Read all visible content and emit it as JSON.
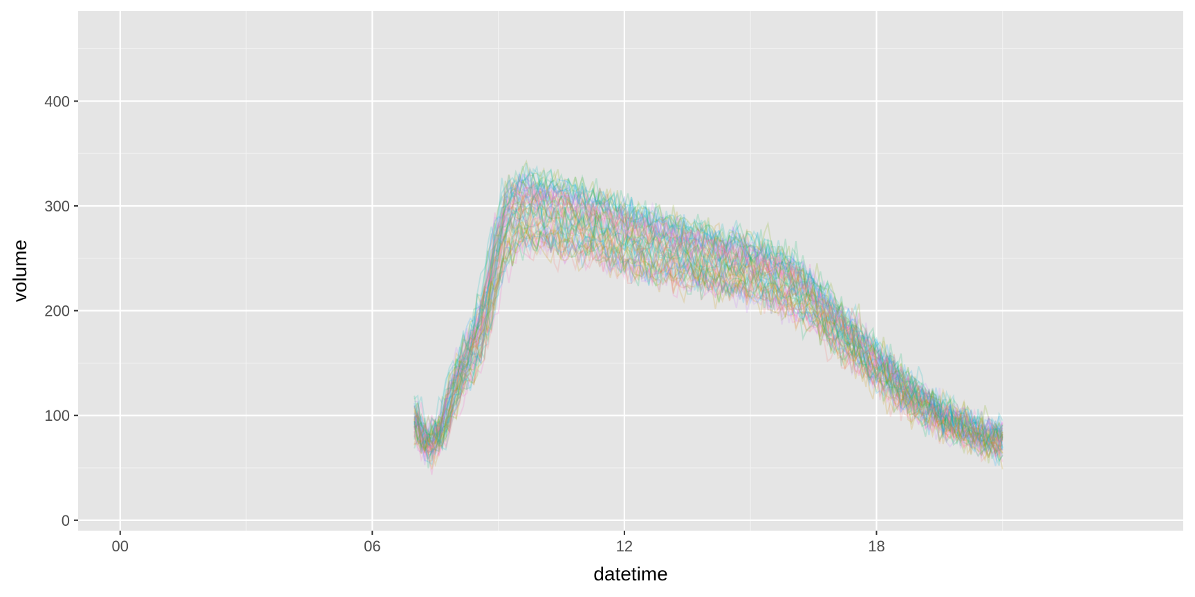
{
  "chart_data": {
    "type": "line",
    "title": "",
    "xlabel": "datetime",
    "ylabel": "volume",
    "x_unit": "hour of day",
    "xlim": [
      -1,
      25.3
    ],
    "ylim": [
      -10,
      486
    ],
    "x_ticks": [
      0,
      6,
      12,
      18
    ],
    "x_tick_labels": [
      "00",
      "06",
      "12",
      "18"
    ],
    "y_ticks": [
      0,
      100,
      200,
      300,
      400
    ],
    "y_tick_labels": [
      "0",
      "100",
      "200",
      "300",
      "400"
    ],
    "grid": true,
    "legend": "none",
    "series_count": 60,
    "series_palette": [
      "#F8766D",
      "#CD9600",
      "#7CAE00",
      "#00BE67",
      "#00BFC4",
      "#00A9FF",
      "#C77CFF",
      "#FF61CC"
    ],
    "series_opacity": 0.18,
    "typical_profile": {
      "hour": [
        7.0,
        7.25,
        7.5,
        7.75,
        8.0,
        8.25,
        8.5,
        8.75,
        9.0,
        9.25,
        9.5,
        10.0,
        10.5,
        11.0,
        11.5,
        12.0,
        12.5,
        13.0,
        13.5,
        14.0,
        14.5,
        15.0,
        15.5,
        16.0,
        16.5,
        17.0,
        17.5,
        18.0,
        18.5,
        19.0,
        19.5,
        20.0,
        20.5,
        21.0
      ],
      "volume": [
        95,
        72,
        75,
        95,
        130,
        150,
        170,
        205,
        255,
        285,
        290,
        290,
        285,
        280,
        275,
        265,
        260,
        255,
        250,
        245,
        242,
        238,
        230,
        220,
        205,
        185,
        165,
        145,
        128,
        112,
        98,
        88,
        80,
        75
      ]
    }
  }
}
